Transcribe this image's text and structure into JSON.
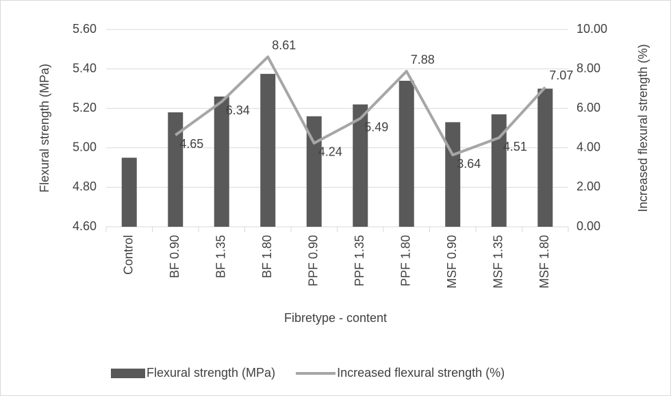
{
  "chart_data": {
    "type": "bar",
    "xlabel": "Fibretype - content",
    "ylabel": "Flexural strength (MPa)",
    "y2label": "Increased flexural strength (%)",
    "categories": [
      "Control",
      "BF 0.90",
      "BF 1.35",
      "BF 1.80",
      "PPF 0.90",
      "PPF 1.35",
      "PPF 1.80",
      "MSF 0.90",
      "MSF 1.35",
      "MSF 1.80"
    ],
    "series": [
      {
        "name": "Flexural strength (MPa)",
        "type": "bar",
        "color": "#595959",
        "values": [
          4.95,
          5.18,
          5.26,
          5.375,
          5.16,
          5.22,
          5.34,
          5.13,
          5.17,
          5.3
        ]
      },
      {
        "name": "Increased flexural strength (%)",
        "type": "line",
        "axis": "y2",
        "color": "#a6a6a6",
        "values": [
          null,
          4.65,
          6.34,
          8.61,
          4.24,
          5.49,
          7.88,
          3.64,
          4.51,
          7.07
        ]
      }
    ],
    "ylim": [
      4.6,
      5.6
    ],
    "yticks": [
      {
        "value": 4.6,
        "label": "4.60"
      },
      {
        "value": 4.8,
        "label": "4.80"
      },
      {
        "value": 5.0,
        "label": "5.00"
      },
      {
        "value": 5.2,
        "label": "5.20"
      },
      {
        "value": 5.4,
        "label": "5.40"
      },
      {
        "value": 5.6,
        "label": "5.60"
      }
    ],
    "y2lim": [
      0,
      10
    ],
    "y2ticks": [
      {
        "value": 0,
        "label": "0.00"
      },
      {
        "value": 2,
        "label": "2.00"
      },
      {
        "value": 4,
        "label": "4.00"
      },
      {
        "value": 6,
        "label": "6.00"
      },
      {
        "value": 8,
        "label": "8.00"
      },
      {
        "value": 10,
        "label": "10.00"
      }
    ],
    "grid": true,
    "legend": "bottom"
  }
}
